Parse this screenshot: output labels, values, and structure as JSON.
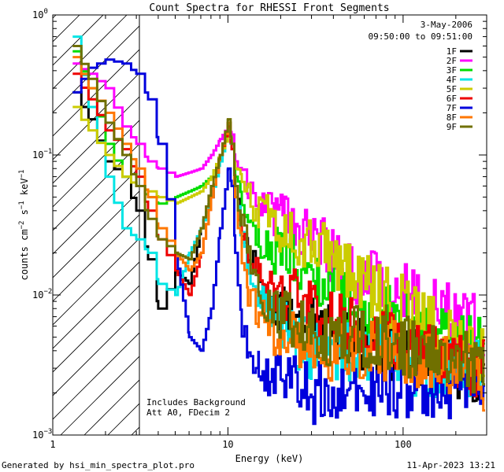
{
  "chart_data": {
    "type": "line",
    "title": "Count Spectra for RHESSI Front Segments",
    "xlabel": "Energy (keV)",
    "ylabel": "counts cm-2 s-1 keV-1",
    "xscale": "log",
    "yscale": "log",
    "xlim": [
      1,
      300
    ],
    "ylim": [
      0.001,
      1
    ],
    "x_ticks": [
      1,
      10,
      100
    ],
    "x_tick_labels": [
      "1",
      "10",
      "100"
    ],
    "y_ticks": [
      0.001,
      0.01,
      0.1,
      1
    ],
    "date": "3-May-2006",
    "time_range": "09:50:00 to 09:51:00",
    "annotation_lines": [
      "Includes Background",
      "Att A0, FDecim 2"
    ],
    "hatched_region_keV": [
      1,
      3
    ],
    "footer_left": "Generated by hsi_min_spectra_plot.pro",
    "footer_right": "11-Apr-2023 13:21",
    "legend_position": "top-right",
    "series": [
      {
        "name": "1F",
        "color": "#000000",
        "x": [
          1.3,
          1.6,
          2,
          2.5,
          3,
          3.5,
          4,
          5,
          6,
          7,
          8,
          9,
          10,
          10.5,
          11,
          12,
          13,
          15,
          20,
          30,
          50,
          80,
          120,
          200,
          280
        ],
        "values": [
          0.28,
          0.18,
          0.09,
          0.07,
          0.04,
          0.018,
          0.008,
          0.015,
          0.012,
          0.03,
          0.05,
          0.1,
          0.17,
          0.12,
          0.06,
          0.03,
          0.02,
          0.012,
          0.008,
          0.006,
          0.005,
          0.004,
          0.0035,
          0.003,
          0.0025
        ]
      },
      {
        "name": "2F",
        "color": "#ff00ff",
        "x": [
          1.3,
          1.6,
          2,
          2.5,
          3,
          3.5,
          4,
          5,
          6,
          7,
          8,
          9,
          10,
          10.5,
          11,
          12,
          13,
          15,
          20,
          30,
          40,
          50,
          80,
          120,
          200,
          280
        ],
        "values": [
          0.45,
          0.38,
          0.3,
          0.16,
          0.12,
          0.09,
          0.08,
          0.07,
          0.075,
          0.08,
          0.1,
          0.13,
          0.16,
          0.14,
          0.09,
          0.07,
          0.055,
          0.045,
          0.035,
          0.025,
          0.02,
          0.015,
          0.012,
          0.009,
          0.007,
          0.006
        ]
      },
      {
        "name": "3F",
        "color": "#00dd00",
        "x": [
          1.3,
          1.6,
          2,
          2.5,
          3,
          3.5,
          4,
          5,
          6,
          7,
          8,
          9,
          10,
          10.5,
          11,
          12,
          13,
          15,
          20,
          30,
          50,
          80,
          120,
          200,
          280
        ],
        "values": [
          0.55,
          0.3,
          0.12,
          0.07,
          0.06,
          0.05,
          0.045,
          0.05,
          0.055,
          0.06,
          0.07,
          0.1,
          0.16,
          0.12,
          0.07,
          0.04,
          0.03,
          0.025,
          0.02,
          0.015,
          0.009,
          0.007,
          0.006,
          0.005,
          0.004
        ]
      },
      {
        "name": "4F",
        "color": "#00e5e5",
        "x": [
          1.3,
          1.6,
          2,
          2.5,
          3,
          3.5,
          4,
          5,
          6,
          7,
          8,
          9,
          10,
          10.5,
          11,
          12,
          13,
          15,
          20,
          30,
          50,
          80,
          120,
          200,
          280
        ],
        "values": [
          0.7,
          0.22,
          0.07,
          0.03,
          0.025,
          0.02,
          0.012,
          0.01,
          0.02,
          0.03,
          0.05,
          0.09,
          0.15,
          0.11,
          0.05,
          0.025,
          0.015,
          0.01,
          0.006,
          0.004,
          0.004,
          0.004,
          0.003,
          0.003,
          0.003
        ]
      },
      {
        "name": "5F",
        "color": "#cccc00",
        "x": [
          1.3,
          1.6,
          2,
          2.5,
          3,
          3.5,
          4,
          5,
          6,
          7,
          8,
          9,
          10,
          10.5,
          11,
          12,
          13,
          15,
          20,
          30,
          40,
          50,
          80,
          120,
          200,
          280
        ],
        "values": [
          0.22,
          0.15,
          0.1,
          0.07,
          0.06,
          0.055,
          0.05,
          0.045,
          0.05,
          0.055,
          0.07,
          0.1,
          0.14,
          0.12,
          0.08,
          0.06,
          0.05,
          0.04,
          0.03,
          0.022,
          0.018,
          0.014,
          0.01,
          0.007,
          0.005,
          0.004
        ]
      },
      {
        "name": "6F",
        "color": "#ee0000",
        "x": [
          1.3,
          1.6,
          2,
          2.5,
          3,
          3.5,
          4,
          5,
          6,
          7,
          8,
          9,
          10,
          10.5,
          11,
          12,
          13,
          15,
          20,
          30,
          50,
          80,
          120,
          200,
          280
        ],
        "values": [
          0.38,
          0.25,
          0.15,
          0.11,
          0.07,
          0.04,
          0.025,
          0.015,
          0.01,
          0.02,
          0.05,
          0.1,
          0.16,
          0.11,
          0.05,
          0.03,
          0.02,
          0.015,
          0.01,
          0.008,
          0.006,
          0.005,
          0.004,
          0.0035,
          0.003
        ]
      },
      {
        "name": "7F",
        "color": "#0000dd",
        "x": [
          1.3,
          1.6,
          2,
          2.5,
          3,
          3.5,
          4,
          5,
          6,
          7,
          8,
          9,
          10,
          10.5,
          11,
          12,
          13,
          15,
          20,
          30,
          50,
          80,
          120,
          200,
          280
        ],
        "values": [
          0.28,
          0.42,
          0.48,
          0.45,
          0.38,
          0.25,
          0.12,
          0.02,
          0.005,
          0.004,
          0.008,
          0.03,
          0.08,
          0.06,
          0.02,
          0.006,
          0.004,
          0.003,
          0.0025,
          0.002,
          0.002,
          0.002,
          0.002,
          0.002,
          0.002
        ]
      },
      {
        "name": "8F",
        "color": "#ff7700",
        "x": [
          1.3,
          1.6,
          2,
          2.5,
          3,
          3.5,
          4,
          5,
          6,
          7,
          8,
          9,
          10,
          10.5,
          11,
          12,
          13,
          15,
          20,
          30,
          50,
          80,
          120,
          200,
          280
        ],
        "values": [
          0.5,
          0.3,
          0.2,
          0.12,
          0.08,
          0.05,
          0.03,
          0.02,
          0.015,
          0.02,
          0.05,
          0.1,
          0.17,
          0.12,
          0.05,
          0.02,
          0.01,
          0.007,
          0.005,
          0.004,
          0.004,
          0.004,
          0.0035,
          0.003,
          0.0025
        ]
      },
      {
        "name": "9F",
        "color": "#707000",
        "x": [
          1.3,
          1.6,
          2,
          2.5,
          3,
          3.5,
          4,
          5,
          6,
          7,
          8,
          9,
          10,
          10.5,
          11,
          12,
          13,
          15,
          20,
          30,
          50,
          80,
          120,
          200,
          280
        ],
        "values": [
          0.6,
          0.35,
          0.17,
          0.1,
          0.06,
          0.035,
          0.025,
          0.02,
          0.018,
          0.03,
          0.06,
          0.1,
          0.18,
          0.12,
          0.06,
          0.03,
          0.02,
          0.01,
          0.007,
          0.005,
          0.005,
          0.005,
          0.004,
          0.004,
          0.003
        ]
      }
    ]
  }
}
